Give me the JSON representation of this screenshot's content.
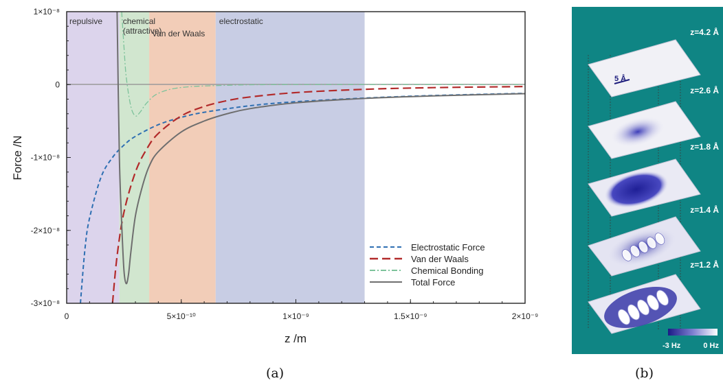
{
  "chart_data": {
    "type": "line",
    "xlabel": "z /m",
    "ylabel": "Force /N",
    "xlim": [
      0,
      2e-09
    ],
    "ylim": [
      -3e-08,
      1e-08
    ],
    "x_ticks": [
      {
        "value": 0,
        "label": "0"
      },
      {
        "value": 5e-10,
        "label": "5×10⁻¹⁰"
      },
      {
        "value": 1e-09,
        "label": "1×10⁻⁹"
      },
      {
        "value": 1.5e-09,
        "label": "1.5×10⁻⁹"
      },
      {
        "value": 2e-09,
        "label": "2×10⁻⁹"
      }
    ],
    "y_ticks": [
      {
        "value": 1e-08,
        "label": "1×10⁻⁸"
      },
      {
        "value": 0,
        "label": "0"
      },
      {
        "value": -1e-08,
        "label": "-1×10⁻⁸"
      },
      {
        "value": -2e-08,
        "label": "-2×10⁻⁸"
      },
      {
        "value": -3e-08,
        "label": "-3×10⁻⁸"
      }
    ],
    "regions": [
      {
        "label": "repulsive",
        "x_start": 0,
        "x_end": 2.3e-10,
        "color": "#dcd4ec"
      },
      {
        "label": "chemical\n(attractive)",
        "x_start": 2.3e-10,
        "x_end": 3.6e-10,
        "color": "#d1e6cf"
      },
      {
        "label": "van der Waals",
        "x_start": 3.6e-10,
        "x_end": 6.5e-10,
        "color": "#f2cdb8"
      },
      {
        "label": "electrostatic",
        "x_start": 6.5e-10,
        "x_end": 1.3e-09,
        "color": "#c8cde4"
      }
    ],
    "series": [
      {
        "name": "Electrostatic Force",
        "color": "#2e6fb2",
        "style": "dashed",
        "x": [
          6e-11,
          8e-11,
          1e-10,
          1.5e-10,
          2e-10,
          2.5e-10,
          3e-10,
          4e-10,
          5e-10,
          6e-10,
          8e-10,
          1e-09,
          1.3e-09,
          1.6e-09,
          2e-09
        ],
        "y": [
          -3e-08,
          -2.25e-08,
          -1.83e-08,
          -1.27e-08,
          -1e-08,
          -8.3e-09,
          -7.1e-09,
          -5.5e-09,
          -4.5e-09,
          -3.8e-09,
          -2.9e-09,
          -2.35e-09,
          -1.85e-09,
          -1.5e-09,
          -1.2e-09
        ]
      },
      {
        "name": "Van der Waals",
        "color": "#b22a2a",
        "style": "longdash",
        "x": [
          2e-10,
          2.2e-10,
          2.5e-10,
          3e-10,
          3.5e-10,
          4e-10,
          5e-10,
          6e-10,
          7e-10,
          8e-10,
          1e-09,
          1.3e-09,
          1.6e-09,
          2e-09
        ],
        "y": [
          -3e-08,
          -2.35e-08,
          -1.75e-08,
          -1.2e-08,
          -8.8e-09,
          -6.7e-09,
          -4.3e-09,
          -3e-09,
          -2.2e-09,
          -1.7e-09,
          -1.1e-09,
          -6.5e-10,
          -4.2e-10,
          -2.7e-10
        ]
      },
      {
        "name": "Chemical Bonding",
        "color": "#7cc29a",
        "style": "dashdot",
        "x": [
          2.4e-10,
          2.5e-10,
          2.6e-10,
          2.8e-10,
          3e-10,
          3.2e-10,
          3.5e-10,
          4e-10,
          5e-10,
          7e-10,
          1e-09,
          2e-09
        ],
        "y": [
          1e-08,
          5.2e-09,
          1e-09,
          -3e-09,
          -4.3e-09,
          -3.8e-09,
          -2.5e-09,
          -1.2e-09,
          -4e-10,
          -1e-10,
          0,
          0
        ]
      },
      {
        "name": "Total Force",
        "color": "#6e6e6e",
        "style": "solid",
        "x": [
          2.2e-10,
          2.3e-10,
          2.4e-10,
          2.5e-10,
          2.6e-10,
          2.7e-10,
          2.8e-10,
          3e-10,
          3.3e-10,
          3.6e-10,
          4e-10,
          5e-10,
          6e-10,
          7e-10,
          8e-10,
          1e-09,
          1.3e-09,
          1.6e-09,
          2e-09
        ],
        "y": [
          1e-08,
          -1e-08,
          -1.9e-08,
          -2.55e-08,
          -2.73e-08,
          -2.6e-08,
          -2.3e-08,
          -1.8e-08,
          -1.4e-08,
          -1.12e-08,
          -9.2e-09,
          -6.5e-09,
          -5e-09,
          -4e-09,
          -3.3e-09,
          -2.5e-09,
          -1.9e-09,
          -1.55e-09,
          -1.25e-09
        ]
      }
    ],
    "legend_position": "bottom-right",
    "grid": false
  },
  "panel_b": {
    "heights": [
      "z=4.2 Å",
      "z=2.6 Å",
      "z=1.8 Å",
      "z=1.4 Å",
      "z=1.2 Å"
    ],
    "scalebar_label": "5 Å",
    "colorbar_min": "-3 Hz",
    "colorbar_max": "0 Hz",
    "background": "#0f8584"
  },
  "captions": {
    "a": "(a)",
    "b": "(b)"
  }
}
